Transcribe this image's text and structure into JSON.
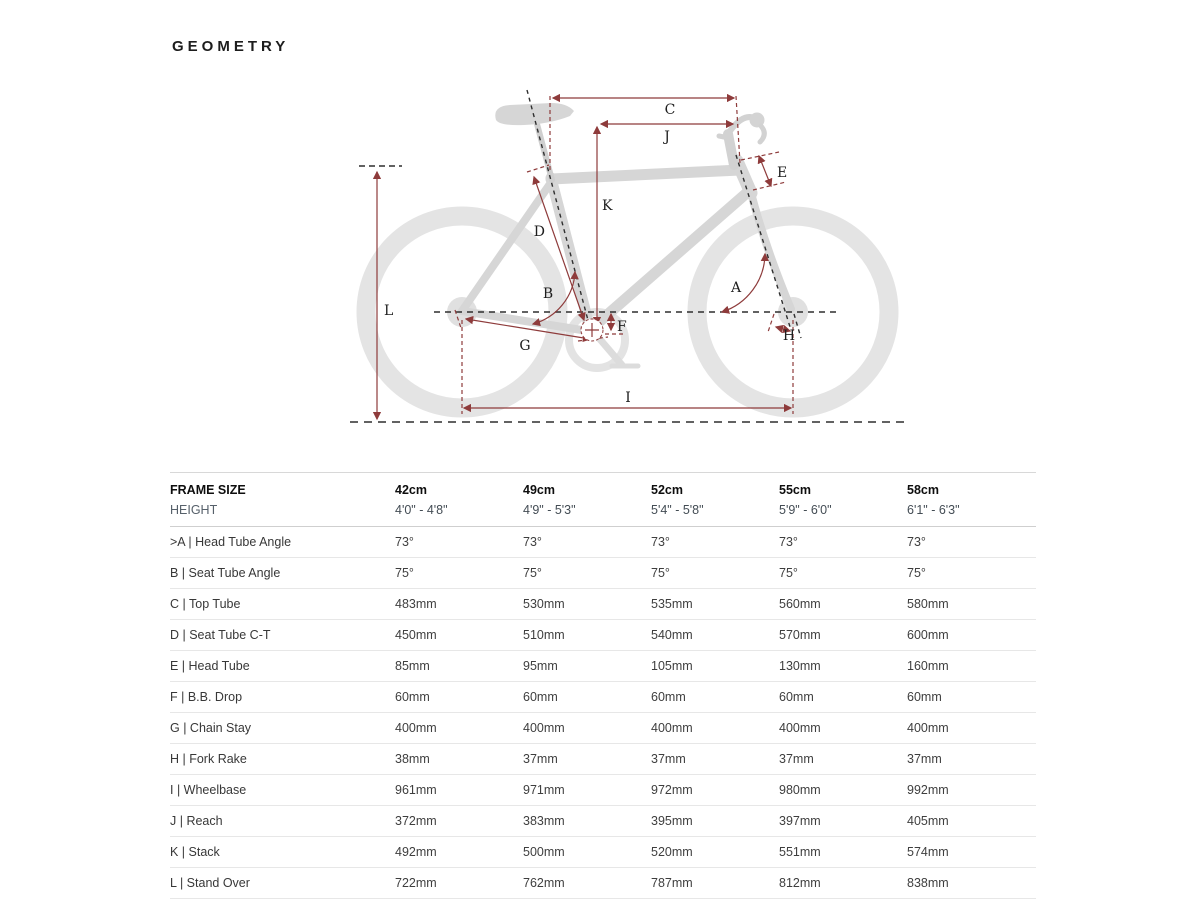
{
  "page": {
    "title": "GEOMETRY"
  },
  "colors": {
    "dimension_red": "#8e3b3b",
    "frame_gray": "#d6d6d6",
    "wheel_gray": "#e4e4e4",
    "dashed_black": "#2f2f2f"
  },
  "diagram": {
    "labels": [
      "A",
      "B",
      "C",
      "D",
      "E",
      "F",
      "G",
      "H",
      "I",
      "J",
      "K",
      "L"
    ]
  },
  "table": {
    "header": {
      "frame_size_label": "FRAME SIZE",
      "sizes": [
        "42cm",
        "49cm",
        "52cm",
        "55cm",
        "58cm"
      ],
      "height_label": "HEIGHT",
      "heights": [
        "4'0\" - 4'8\"",
        "4'9\" - 5'3\"",
        "5'4\" - 5'8\"",
        "5'9\" - 6'0\"",
        "6'1\" - 6'3\""
      ]
    },
    "rows": [
      {
        "label": ">A | Head Tube Angle",
        "values": [
          "73°",
          "73°",
          "73°",
          "73°",
          "73°"
        ]
      },
      {
        "label": "B | Seat Tube Angle",
        "values": [
          "75°",
          "75°",
          "75°",
          "75°",
          "75°"
        ]
      },
      {
        "label": "C | Top Tube",
        "values": [
          "483mm",
          "530mm",
          "535mm",
          "560mm",
          "580mm"
        ]
      },
      {
        "label": "D | Seat Tube C-T",
        "values": [
          "450mm",
          "510mm",
          "540mm",
          "570mm",
          "600mm"
        ]
      },
      {
        "label": "E | Head Tube",
        "values": [
          "85mm",
          "95mm",
          "105mm",
          "130mm",
          "160mm"
        ]
      },
      {
        "label": "F | B.B. Drop",
        "values": [
          "60mm",
          "60mm",
          "60mm",
          "60mm",
          "60mm"
        ]
      },
      {
        "label": "G | Chain Stay",
        "values": [
          "400mm",
          "400mm",
          "400mm",
          "400mm",
          "400mm"
        ]
      },
      {
        "label": "H | Fork Rake",
        "values": [
          "38mm",
          "37mm",
          "37mm",
          "37mm",
          "37mm"
        ]
      },
      {
        "label": "I | Wheelbase",
        "values": [
          "961mm",
          "971mm",
          "972mm",
          "980mm",
          "992mm"
        ]
      },
      {
        "label": "J | Reach",
        "values": [
          "372mm",
          "383mm",
          "395mm",
          "397mm",
          "405mm"
        ]
      },
      {
        "label": "K | Stack",
        "values": [
          "492mm",
          "500mm",
          "520mm",
          "551mm",
          "574mm"
        ]
      },
      {
        "label": "L | Stand Over",
        "values": [
          "722mm",
          "762mm",
          "787mm",
          "812mm",
          "838mm"
        ]
      }
    ]
  }
}
